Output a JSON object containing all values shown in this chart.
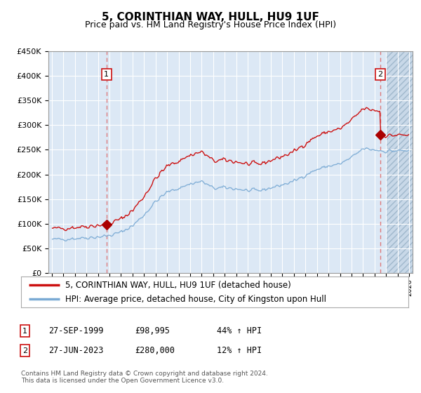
{
  "title": "5, CORINTHIAN WAY, HULL, HU9 1UF",
  "subtitle": "Price paid vs. HM Land Registry's House Price Index (HPI)",
  "legend_line1": "5, CORINTHIAN WAY, HULL, HU9 1UF (detached house)",
  "legend_line2": "HPI: Average price, detached house, City of Kingston upon Hull",
  "table_row1_label": "1",
  "table_row1_date": "27-SEP-1999",
  "table_row1_price": "£98,995",
  "table_row1_hpi": "44% ↑ HPI",
  "table_row2_label": "2",
  "table_row2_date": "27-JUN-2023",
  "table_row2_price": "£280,000",
  "table_row2_hpi": "12% ↑ HPI",
  "footnote": "Contains HM Land Registry data © Crown copyright and database right 2024.\nThis data is licensed under the Open Government Licence v3.0.",
  "hpi_color": "#7aaad4",
  "price_color": "#cc1111",
  "dashed_color": "#dd6666",
  "marker_color": "#aa0000",
  "background_plot": "#dce8f5",
  "background_hatch_color": "#c8d8e8",
  "grid_color": "#ffffff",
  "ylim": [
    0,
    450000
  ],
  "yticks": [
    0,
    50000,
    100000,
    150000,
    200000,
    250000,
    300000,
    350000,
    400000,
    450000
  ],
  "xlim_start": 1994.7,
  "xlim_end": 2026.3,
  "purchase1_x": 1999.74,
  "purchase1_y": 98995,
  "purchase2_x": 2023.49,
  "purchase2_y": 280000,
  "hatch_start": 2024.0
}
